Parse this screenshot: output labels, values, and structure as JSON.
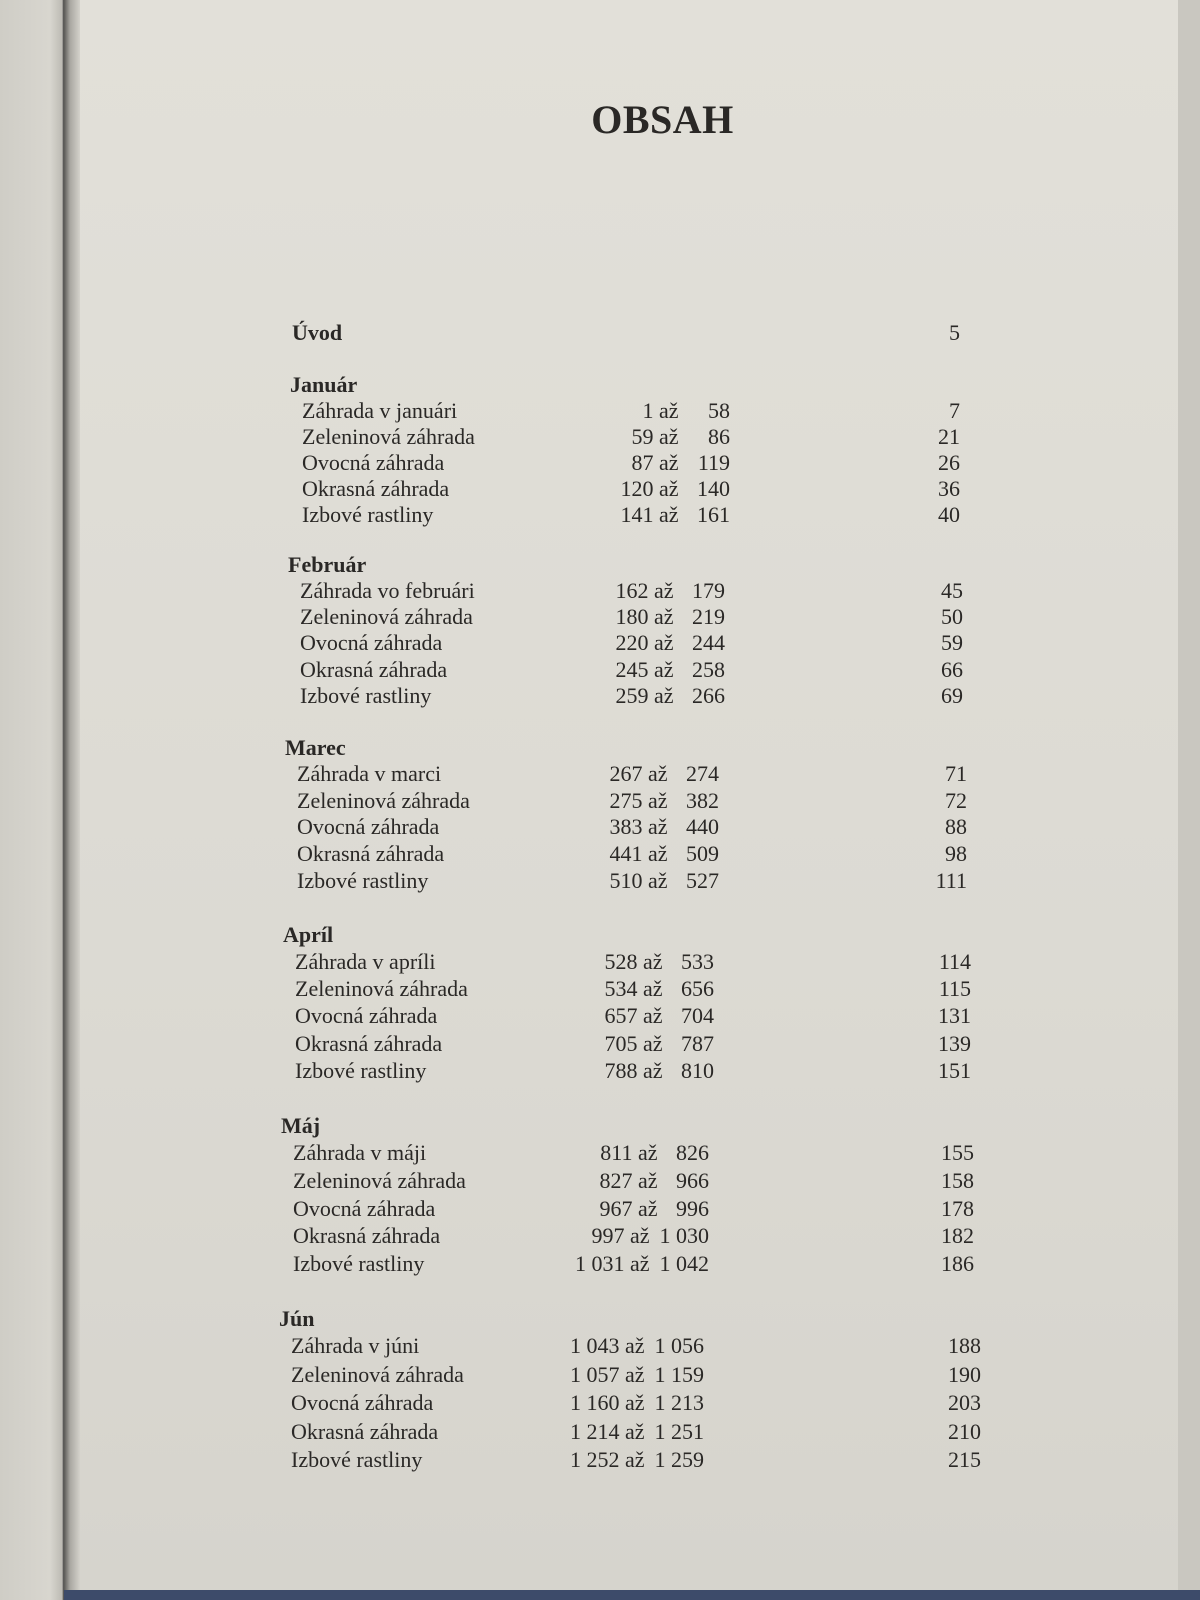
{
  "title": "OBSAH",
  "intro": {
    "label": "Úvod",
    "page": "5"
  },
  "sections": [
    {
      "heading": "Január",
      "items": [
        {
          "label": "Záhrada v januári",
          "from": "1",
          "to": "58",
          "page": "7"
        },
        {
          "label": "Zeleninová záhrada",
          "from": "59",
          "to": "86",
          "page": "21"
        },
        {
          "label": "Ovocná záhrada",
          "from": "87",
          "to": "119",
          "page": "26"
        },
        {
          "label": "Okrasná záhrada",
          "from": "120",
          "to": "140",
          "page": "36"
        },
        {
          "label": "Izbové rastliny",
          "from": "141",
          "to": "161",
          "page": "40"
        }
      ]
    },
    {
      "heading": "Február",
      "items": [
        {
          "label": "Záhrada vo februári",
          "from": "162",
          "to": "179",
          "page": "45"
        },
        {
          "label": "Zeleninová záhrada",
          "from": "180",
          "to": "219",
          "page": "50"
        },
        {
          "label": "Ovocná záhrada",
          "from": "220",
          "to": "244",
          "page": "59"
        },
        {
          "label": "Okrasná záhrada",
          "from": "245",
          "to": "258",
          "page": "66"
        },
        {
          "label": "Izbové rastliny",
          "from": "259",
          "to": "266",
          "page": "69"
        }
      ]
    },
    {
      "heading": "Marec",
      "items": [
        {
          "label": "Záhrada v marci",
          "from": "267",
          "to": "274",
          "page": "71"
        },
        {
          "label": "Zeleninová záhrada",
          "from": "275",
          "to": "382",
          "page": "72"
        },
        {
          "label": "Ovocná záhrada",
          "from": "383",
          "to": "440",
          "page": "88"
        },
        {
          "label": "Okrasná záhrada",
          "from": "441",
          "to": "509",
          "page": "98"
        },
        {
          "label": "Izbové rastliny",
          "from": "510",
          "to": "527",
          "page": "111"
        }
      ]
    },
    {
      "heading": "Apríl",
      "items": [
        {
          "label": "Záhrada v apríli",
          "from": "528",
          "to": "533",
          "page": "114"
        },
        {
          "label": "Zeleninová záhrada",
          "from": "534",
          "to": "656",
          "page": "115"
        },
        {
          "label": "Ovocná záhrada",
          "from": "657",
          "to": "704",
          "page": "131"
        },
        {
          "label": "Okrasná záhrada",
          "from": "705",
          "to": "787",
          "page": "139"
        },
        {
          "label": "Izbové rastliny",
          "from": "788",
          "to": "810",
          "page": "151"
        }
      ]
    },
    {
      "heading": "Máj",
      "items": [
        {
          "label": "Záhrada v máji",
          "from": "811",
          "to": "826",
          "page": "155"
        },
        {
          "label": "Zeleninová záhrada",
          "from": "827",
          "to": "966",
          "page": "158"
        },
        {
          "label": "Ovocná záhrada",
          "from": "967",
          "to": "996",
          "page": "178"
        },
        {
          "label": "Okrasná záhrada",
          "from": "997",
          "to": "1 030",
          "page": "182"
        },
        {
          "label": "Izbové rastliny",
          "from": "1 031",
          "to": "1 042",
          "page": "186"
        }
      ]
    },
    {
      "heading": "Jún",
      "items": [
        {
          "label": "Záhrada v júni",
          "from": "1 043",
          "to": "1 056",
          "page": "188"
        },
        {
          "label": "Zeleninová záhrada",
          "from": "1 057",
          "to": "1 159",
          "page": "190"
        },
        {
          "label": "Ovocná záhrada",
          "from": "1 160",
          "to": "1 213",
          "page": "203"
        },
        {
          "label": "Okrasná záhrada",
          "from": "1 214",
          "to": "1 251",
          "page": "210"
        },
        {
          "label": "Izbové rastliny",
          "from": "1 252",
          "to": "1 259",
          "page": "215"
        }
      ]
    }
  ],
  "range_separator": "až"
}
